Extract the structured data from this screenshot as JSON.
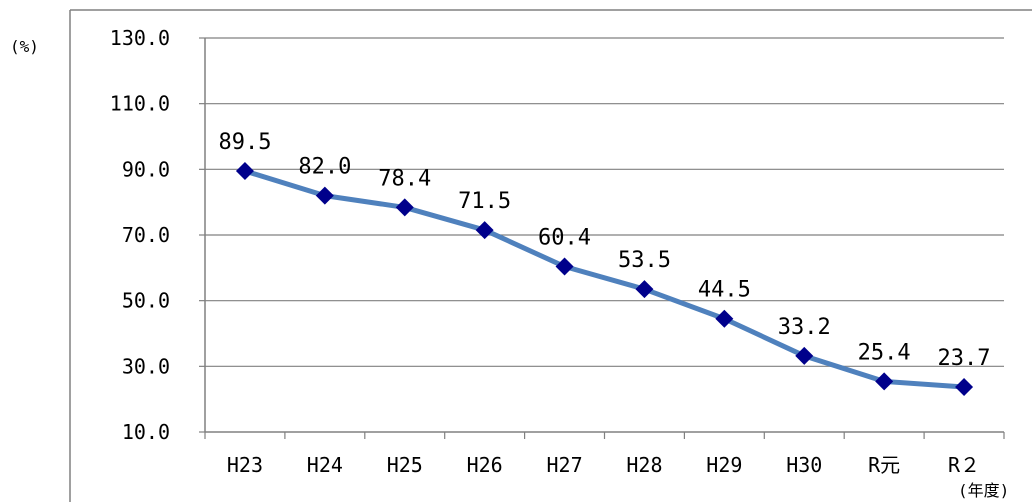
{
  "chart_data": {
    "type": "line",
    "title": "",
    "ylabel": "(%)",
    "xlabel": "(年度)",
    "categories": [
      "H23",
      "H24",
      "H25",
      "H26",
      "H27",
      "H28",
      "H29",
      "H30",
      "R元",
      "R２"
    ],
    "series": [
      {
        "values": [
          89.5,
          82.0,
          78.4,
          71.5,
          60.4,
          53.5,
          44.5,
          33.2,
          25.4,
          23.7
        ]
      }
    ],
    "ylim": [
      10,
      130
    ],
    "yticks": [
      "10.0",
      "30.0",
      "50.0",
      "70.0",
      "90.0",
      "110.0",
      "130.0"
    ],
    "data_labels": [
      "89.5",
      "82.0",
      "78.4",
      "71.5",
      "60.4",
      "53.5",
      "44.5",
      "33.2",
      "25.4",
      "23.7"
    ],
    "grid": true,
    "legend": "none",
    "colors": {
      "line": "#4F81BD",
      "marker": "#00008B",
      "grid": "#808080",
      "axis": "#808080"
    }
  }
}
